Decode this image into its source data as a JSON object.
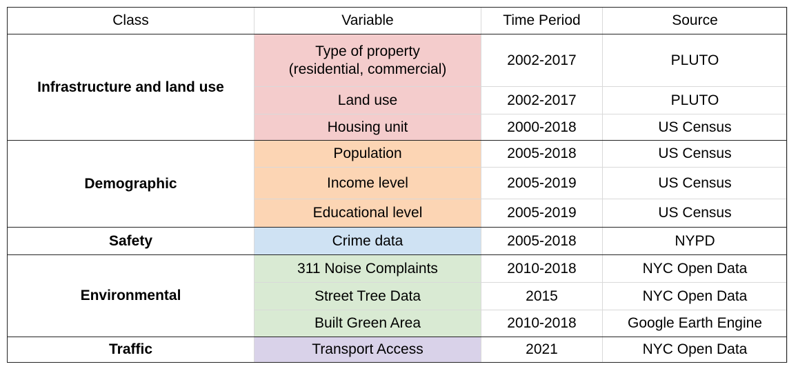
{
  "table": {
    "headers": [
      "Class",
      "Variable",
      "Time Period",
      "Source"
    ],
    "groups": [
      {
        "class": "Infrastructure and land use",
        "rows": [
          {
            "variable": "Type of property (residential, commercial)",
            "period": "2002-2017",
            "source": "PLUTO"
          },
          {
            "variable": "Land use",
            "period": "2002-2017",
            "source": "PLUTO"
          },
          {
            "variable": "Housing unit",
            "period": "2000-2018",
            "source": "US Census"
          }
        ]
      },
      {
        "class": "Demographic",
        "rows": [
          {
            "variable": "Population",
            "period": "2005-2018",
            "source": "US Census"
          },
          {
            "variable": "Income level",
            "period": "2005-2019",
            "source": "US Census"
          },
          {
            "variable": "Educational level",
            "period": "2005-2019",
            "source": "US Census"
          }
        ]
      },
      {
        "class": "Safety",
        "rows": [
          {
            "variable": "Crime data",
            "period": "2005-2018",
            "source": "NYPD"
          }
        ]
      },
      {
        "class": "Environmental",
        "rows": [
          {
            "variable": "311 Noise Complaints",
            "period": "2010-2018",
            "source": "NYC Open Data"
          },
          {
            "variable": "Street Tree Data",
            "period": "2015",
            "source": "NYC Open Data"
          },
          {
            "variable": "Built Green Area",
            "period": "2010-2018",
            "source": "Google Earth Engine"
          }
        ]
      },
      {
        "class": "Traffic",
        "rows": [
          {
            "variable": "Transport Access",
            "period": "2021",
            "source": "NYC Open Data"
          }
        ]
      }
    ]
  },
  "colors": {
    "infrastructure": "#f4cccc",
    "demographic": "#fcd5b4",
    "safety": "#cfe2f3",
    "environmental": "#d9ead3",
    "traffic": "#d9d2e9",
    "grid": "#d9d9d9",
    "frame": "#222222"
  }
}
